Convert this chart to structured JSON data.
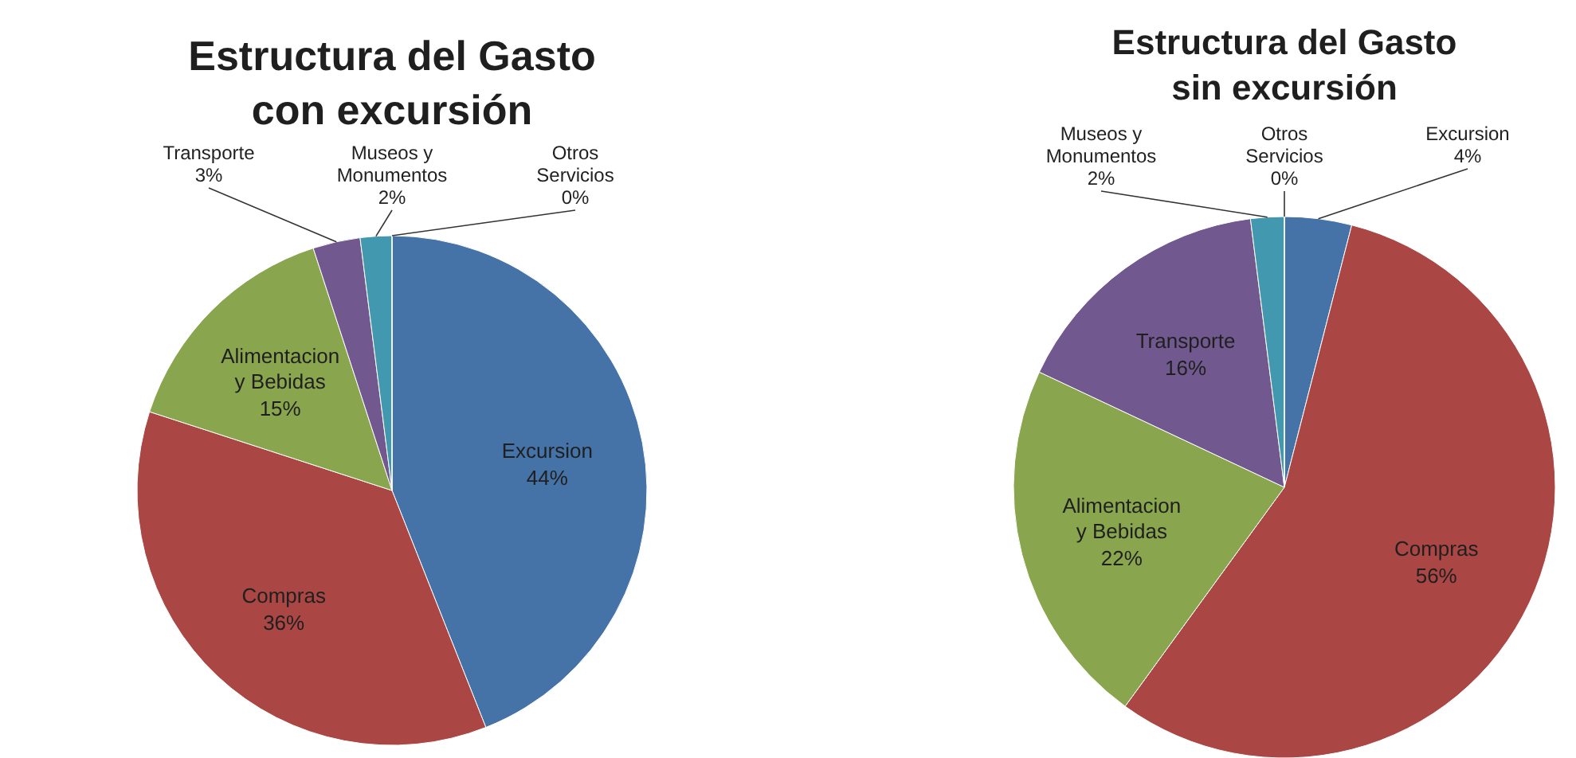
{
  "chart_data": [
    {
      "type": "pie",
      "title": "Estructura del Gasto con excursión",
      "categories": [
        "Excursion",
        "Compras",
        "Alimentacion y Bebidas",
        "Transporte",
        "Museos y Monumentos",
        "Otros Servicios"
      ],
      "values": [
        44,
        36,
        15,
        3,
        2,
        0
      ],
      "value_labels": [
        "44%",
        "36%",
        "15%",
        "3%",
        "2%",
        "0%"
      ],
      "colors": [
        "#4572a7",
        "#aa4643",
        "#89a54e",
        "#71588f",
        "#4198af",
        "#db843d"
      ]
    },
    {
      "type": "pie",
      "title": "Estructura del Gasto sin excursión",
      "categories": [
        "Excursion",
        "Compras",
        "Alimentacion y Bebidas",
        "Transporte",
        "Museos y Monumentos",
        "Otros Servicios"
      ],
      "values": [
        4,
        56,
        22,
        16,
        2,
        0
      ],
      "value_labels": [
        "4%",
        "56%",
        "22%",
        "16%",
        "2%",
        "0%"
      ],
      "colors": [
        "#4572a7",
        "#aa4643",
        "#89a54e",
        "#71588f",
        "#4198af",
        "#db843d"
      ]
    }
  ]
}
